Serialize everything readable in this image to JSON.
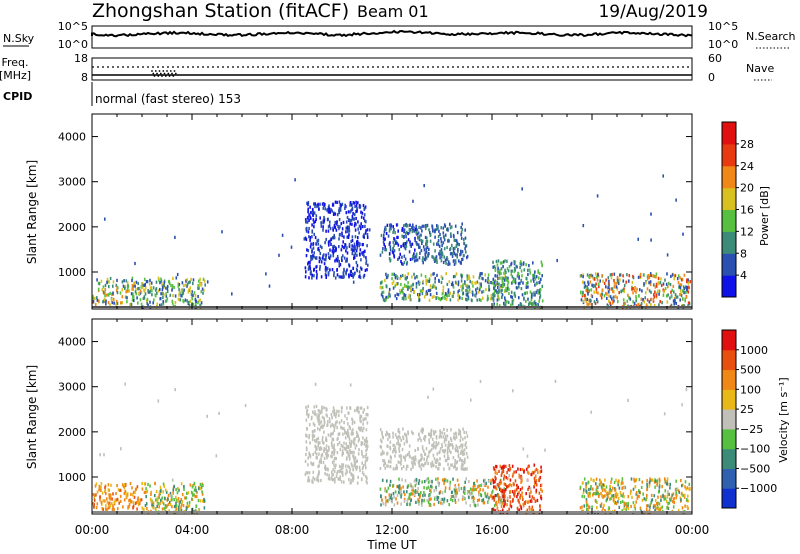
{
  "header": {
    "station": "Zhongshan Station (fitACF)",
    "beam": "Beam 01",
    "date": "19/Aug/2019"
  },
  "panels": {
    "nsky": {
      "label": "N.Sky",
      "ticks": [
        "10^5",
        "10^0"
      ],
      "right_ticks": [
        "10^5",
        "10^0"
      ],
      "right_label": "N.Search"
    },
    "freq": {
      "label_line1": "Freq.",
      "label_line2": "[MHz]",
      "ticks": [
        "18",
        "8"
      ],
      "right_ticks": [
        "60",
        "0"
      ],
      "right_label": "Nave"
    },
    "cpid": {
      "label": "CPID",
      "text": "normal (fast stereo) 153"
    }
  },
  "chart_data": [
    {
      "type": "heatmap",
      "name": "power",
      "ylabel": "Slant Range [km]",
      "xlabel": "",
      "yticks": [
        "1000",
        "2000",
        "3000",
        "4000"
      ],
      "ylim": [
        180,
        4500
      ],
      "xlim": [
        0,
        24
      ],
      "colorbar": {
        "label": "Power [dB]",
        "ticks": [
          "4",
          "8",
          "12",
          "16",
          "20",
          "24",
          "28"
        ]
      },
      "colors": [
        "#1010e8",
        "#2a50b0",
        "#3c8a78",
        "#58c040",
        "#d8c020",
        "#f08818",
        "#e83a10",
        "#e01010"
      ],
      "clusters": [
        {
          "t": [
            0.0,
            2.0
          ],
          "r": [
            300,
            900
          ],
          "levels": [
            1,
            2,
            3,
            4,
            5
          ]
        },
        {
          "t": [
            2.0,
            4.5
          ],
          "r": [
            250,
            900
          ],
          "levels": [
            1,
            2,
            3,
            4
          ]
        },
        {
          "t": [
            8.5,
            11.0
          ],
          "r": [
            900,
            2600
          ],
          "levels": [
            0,
            1
          ]
        },
        {
          "t": [
            11.5,
            13.0
          ],
          "r": [
            1200,
            2100
          ],
          "levels": [
            0,
            1,
            2
          ]
        },
        {
          "t": [
            13.0,
            15.0
          ],
          "r": [
            1200,
            2100
          ],
          "levels": [
            1,
            1,
            2
          ]
        },
        {
          "t": [
            11.5,
            16.5
          ],
          "r": [
            400,
            1000
          ],
          "levels": [
            1,
            2,
            3,
            4
          ]
        },
        {
          "t": [
            16.0,
            18.0
          ],
          "r": [
            250,
            1300
          ],
          "levels": [
            1,
            2,
            3
          ]
        },
        {
          "t": [
            19.5,
            23.9
          ],
          "r": [
            250,
            1000
          ],
          "levels": [
            1,
            2,
            3,
            4,
            5,
            6
          ]
        }
      ]
    },
    {
      "type": "heatmap",
      "name": "velocity",
      "ylabel": "Slant Range [km]",
      "xlabel": "Time UT",
      "xticks": [
        "00:00",
        "04:00",
        "08:00",
        "12:00",
        "16:00",
        "20:00",
        "00:00"
      ],
      "yticks": [
        "1000",
        "2000",
        "3000",
        "4000"
      ],
      "ylim": [
        180,
        4500
      ],
      "xlim": [
        0,
        24
      ],
      "colorbar": {
        "label": "Velocity [m s⁻¹]",
        "ticks": [
          "1000",
          "500",
          "100",
          "25",
          "−25",
          "−100",
          "−500",
          "−1000"
        ]
      },
      "colors": [
        "#1030d0",
        "#3060b0",
        "#3c8a78",
        "#58c040",
        "#c0c0b8",
        "#e8b818",
        "#f08818",
        "#e85010",
        "#e01010"
      ],
      "clusters": [
        {
          "t": [
            0.0,
            2.0
          ],
          "r": [
            300,
            900
          ],
          "levels": [
            6,
            6,
            5,
            7
          ]
        },
        {
          "t": [
            2.0,
            4.5
          ],
          "r": [
            250,
            900
          ],
          "levels": [
            6,
            5,
            2,
            3
          ]
        },
        {
          "t": [
            8.5,
            11.0
          ],
          "r": [
            900,
            2600
          ],
          "levels": [
            4,
            4
          ]
        },
        {
          "t": [
            11.5,
            15.0
          ],
          "r": [
            1200,
            2100
          ],
          "levels": [
            4,
            4,
            4
          ]
        },
        {
          "t": [
            11.5,
            16.5
          ],
          "r": [
            400,
            1000
          ],
          "levels": [
            2,
            3,
            4,
            6
          ]
        },
        {
          "t": [
            16.0,
            18.0
          ],
          "r": [
            250,
            1300
          ],
          "levels": [
            6,
            7,
            8
          ]
        },
        {
          "t": [
            19.5,
            23.9
          ],
          "r": [
            250,
            1000
          ],
          "levels": [
            6,
            6,
            5,
            2,
            3
          ]
        }
      ]
    }
  ]
}
